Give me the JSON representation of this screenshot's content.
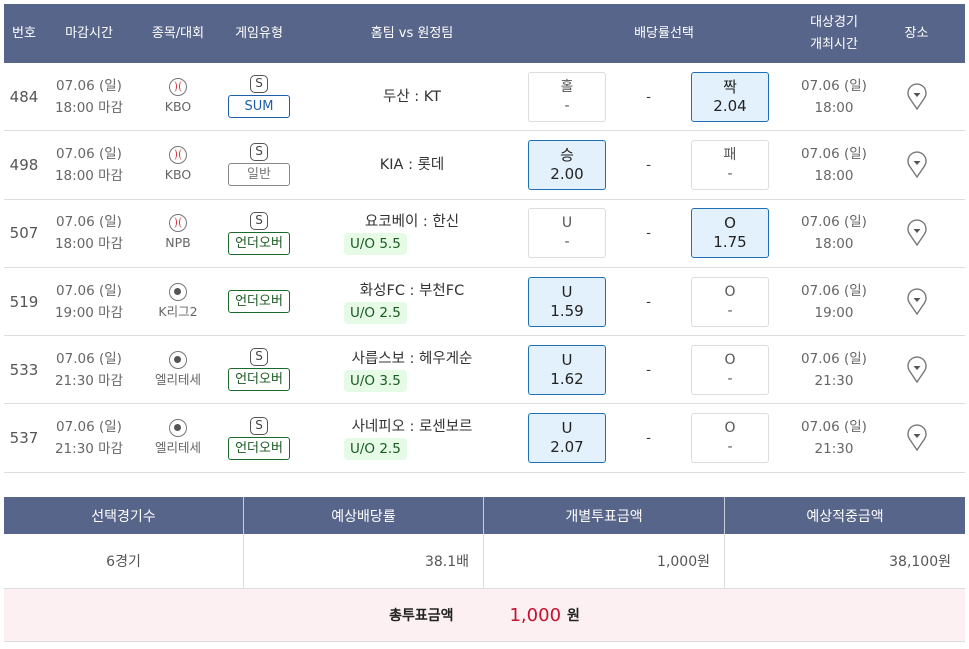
{
  "header": [
    "번호",
    "마감시간",
    "종목/대회",
    "게임유형",
    "홈팀 vs 원정팀",
    "배당률선택",
    "대상경기\n개최시간",
    "장소"
  ],
  "rows": [
    {
      "no": "484",
      "date": "07.06 (일)",
      "close": "18:00 마감",
      "sport": "baseball",
      "league": "KBO",
      "s": "S",
      "type": "SUM",
      "tagkind": "sum",
      "teams": "두산 : KT",
      "uo": "",
      "home": {
        "label": "홀",
        "odd": "-",
        "sel": false
      },
      "draw": "-",
      "away": {
        "label": "짝",
        "odd": "2.04",
        "sel": true
      },
      "gdate": "07.06 (일)",
      "gtime": "18:00"
    },
    {
      "no": "498",
      "date": "07.06 (일)",
      "close": "18:00 마감",
      "sport": "baseball",
      "league": "KBO",
      "s": "S",
      "type": "일반",
      "tagkind": "gen",
      "teams": "KIA : 롯데",
      "uo": "",
      "home": {
        "label": "승",
        "odd": "2.00",
        "sel": true
      },
      "draw": "-",
      "away": {
        "label": "패",
        "odd": "-",
        "sel": false
      },
      "gdate": "07.06 (일)",
      "gtime": "18:00"
    },
    {
      "no": "507",
      "date": "07.06 (일)",
      "close": "18:00 마감",
      "sport": "baseball",
      "league": "NPB",
      "s": "S",
      "type": "언더오버",
      "tagkind": "uo",
      "teams": "요코베이 : 한신",
      "uo": "U/O 5.5",
      "home": {
        "label": "U",
        "odd": "-",
        "sel": false
      },
      "draw": "-",
      "away": {
        "label": "O",
        "odd": "1.75",
        "sel": true
      },
      "gdate": "07.06 (일)",
      "gtime": "18:00"
    },
    {
      "no": "519",
      "date": "07.06 (일)",
      "close": "19:00 마감",
      "sport": "soccer",
      "league": "K리그2",
      "s": "",
      "type": "언더오버",
      "tagkind": "uo",
      "teams": "화성FC : 부천FC",
      "uo": "U/O 2.5",
      "home": {
        "label": "U",
        "odd": "1.59",
        "sel": true
      },
      "draw": "-",
      "away": {
        "label": "O",
        "odd": "-",
        "sel": false
      },
      "gdate": "07.06 (일)",
      "gtime": "19:00"
    },
    {
      "no": "533",
      "date": "07.06 (일)",
      "close": "21:30 마감",
      "sport": "soccer",
      "league": "엘리테세",
      "s": "S",
      "type": "언더오버",
      "tagkind": "uo",
      "teams": "사릅스보 : 헤우게순",
      "uo": "U/O 3.5",
      "home": {
        "label": "U",
        "odd": "1.62",
        "sel": true
      },
      "draw": "-",
      "away": {
        "label": "O",
        "odd": "-",
        "sel": false
      },
      "gdate": "07.06 (일)",
      "gtime": "21:30"
    },
    {
      "no": "537",
      "date": "07.06 (일)",
      "close": "21:30 마감",
      "sport": "soccer",
      "league": "엘리테세",
      "s": "S",
      "type": "언더오버",
      "tagkind": "uo",
      "teams": "사네피오 : 로센보르",
      "uo": "U/O 2.5",
      "home": {
        "label": "U",
        "odd": "2.07",
        "sel": true
      },
      "draw": "-",
      "away": {
        "label": "O",
        "odd": "-",
        "sel": false
      },
      "gdate": "07.06 (일)",
      "gtime": "21:30"
    }
  ],
  "summary": {
    "headers": [
      "선택경기수",
      "예상배당률",
      "개별투표금액",
      "예상적중금액"
    ],
    "values": [
      "6경기",
      "38.1배",
      "1,000원",
      "38,100원"
    ],
    "total_label": "총투표금액",
    "total_value": "1,000",
    "total_unit": "원"
  },
  "colors": {
    "header_bg": "#58658a",
    "selected_bg": "#e3f1fc",
    "selected_border": "#1f6fb8",
    "total_value": "#c8102e",
    "total_bg": "#fcf0f2"
  }
}
